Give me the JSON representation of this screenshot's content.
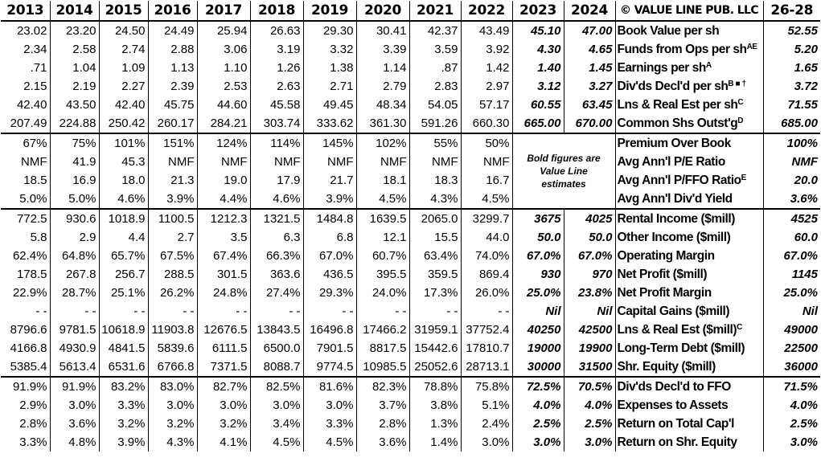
{
  "header": {
    "years": [
      "2013",
      "2014",
      "2015",
      "2016",
      "2017",
      "2018",
      "2019",
      "2020",
      "2021",
      "2022",
      "2023",
      "2024"
    ],
    "publisher": "© VALUE LINE PUB. LLC",
    "projection_label": "26-28"
  },
  "note": {
    "line1": "Bold figures are",
    "line2": "Value Line",
    "line3": "estimates"
  },
  "rows": [
    {
      "label": "Book Value per sh",
      "sup": "",
      "values": [
        "23.02",
        "23.20",
        "24.50",
        "24.49",
        "25.94",
        "26.63",
        "29.30",
        "30.41",
        "42.37",
        "43.49",
        "45.10",
        "47.00"
      ],
      "proj": "52.55"
    },
    {
      "label": "Funds from Ops per sh",
      "sup": "AE",
      "values": [
        "2.34",
        "2.58",
        "2.74",
        "2.88",
        "3.06",
        "3.19",
        "3.32",
        "3.39",
        "3.59",
        "3.92",
        "4.30",
        "4.65"
      ],
      "proj": "5.20"
    },
    {
      "label": "Earnings per sh",
      "sup": "A",
      "values": [
        ".71",
        "1.04",
        "1.09",
        "1.13",
        "1.10",
        "1.26",
        "1.38",
        "1.14",
        ".87",
        "1.42",
        "1.40",
        "1.45"
      ],
      "proj": "1.65"
    },
    {
      "label": "Div'ds Decl'd per sh",
      "sup": "B ■ †",
      "values": [
        "2.15",
        "2.19",
        "2.27",
        "2.39",
        "2.53",
        "2.63",
        "2.71",
        "2.79",
        "2.83",
        "2.97",
        "3.12",
        "3.27"
      ],
      "proj": "3.72"
    },
    {
      "label": "Lns & Real Est per sh",
      "sup": "C",
      "values": [
        "42.40",
        "43.50",
        "42.40",
        "45.75",
        "44.60",
        "45.58",
        "49.45",
        "48.34",
        "54.05",
        "57.17",
        "60.55",
        "63.45"
      ],
      "proj": "71.55"
    },
    {
      "label": "Common Shs Outst'g",
      "sup": "D",
      "values": [
        "207.49",
        "224.88",
        "250.42",
        "260.17",
        "284.21",
        "303.74",
        "333.62",
        "361.30",
        "591.26",
        "660.30",
        "665.00",
        "670.00"
      ],
      "proj": "685.00"
    },
    {
      "label": "Premium Over Book",
      "sup": "",
      "values": [
        "67%",
        "75%",
        "101%",
        "151%",
        "124%",
        "114%",
        "145%",
        "102%",
        "55%",
        "50%"
      ],
      "proj": "100%"
    },
    {
      "label": "Avg Ann'l P/E Ratio",
      "sup": "",
      "values": [
        "NMF",
        "41.9",
        "45.3",
        "NMF",
        "NMF",
        "NMF",
        "NMF",
        "NMF",
        "NMF",
        "NMF"
      ],
      "proj": "NMF"
    },
    {
      "label": "Avg Ann'l P/FFO Ratio",
      "sup": "E",
      "values": [
        "18.5",
        "16.9",
        "18.0",
        "21.3",
        "19.0",
        "17.9",
        "21.7",
        "18.1",
        "18.3",
        "16.7"
      ],
      "proj": "20.0"
    },
    {
      "label": "Avg Ann'l Div'd Yield",
      "sup": "",
      "values": [
        "5.0%",
        "5.0%",
        "4.6%",
        "3.9%",
        "4.4%",
        "4.6%",
        "3.9%",
        "4.5%",
        "4.3%",
        "4.5%"
      ],
      "proj": "3.6%"
    },
    {
      "label": "Rental Income ($mill)",
      "sup": "",
      "values": [
        "772.5",
        "930.6",
        "1018.9",
        "1100.5",
        "1212.3",
        "1321.5",
        "1484.8",
        "1639.5",
        "2065.0",
        "3299.7",
        "3675",
        "4025"
      ],
      "proj": "4525"
    },
    {
      "label": "Other Income ($mill)",
      "sup": "",
      "values": [
        "5.8",
        "2.9",
        "4.4",
        "2.7",
        "3.5",
        "6.3",
        "6.8",
        "12.1",
        "15.5",
        "44.0",
        "50.0",
        "50.0"
      ],
      "proj": "60.0"
    },
    {
      "label": "Operating Margin",
      "sup": "",
      "values": [
        "62.4%",
        "64.8%",
        "65.7%",
        "67.5%",
        "67.4%",
        "66.3%",
        "67.0%",
        "60.7%",
        "63.4%",
        "74.0%",
        "67.0%",
        "67.0%"
      ],
      "proj": "67.0%"
    },
    {
      "label": "Net Profit ($mill)",
      "sup": "",
      "values": [
        "178.5",
        "267.8",
        "256.7",
        "288.5",
        "301.5",
        "363.6",
        "436.5",
        "395.5",
        "359.5",
        "869.4",
        "930",
        "970"
      ],
      "proj": "1145"
    },
    {
      "label": "Net Profit Margin",
      "sup": "",
      "values": [
        "22.9%",
        "28.7%",
        "25.1%",
        "26.2%",
        "24.8%",
        "27.4%",
        "29.3%",
        "24.0%",
        "17.3%",
        "26.0%",
        "25.0%",
        "23.8%"
      ],
      "proj": "25.0%"
    },
    {
      "label": "Capital Gains ($mill)",
      "sup": "",
      "values": [
        "- -",
        "- -",
        "- -",
        "- -",
        "- -",
        "- -",
        "- -",
        "- -",
        "- -",
        "- -",
        "Nil",
        "Nil"
      ],
      "proj": "Nil"
    },
    {
      "label": "Lns & Real Est ($mill)",
      "sup": "C",
      "values": [
        "8796.6",
        "9781.5",
        "10618.9",
        "11903.8",
        "12676.5",
        "13843.5",
        "16496.8",
        "17466.2",
        "31959.1",
        "37752.4",
        "40250",
        "42500"
      ],
      "proj": "49000"
    },
    {
      "label": "Long-Term Debt ($mill)",
      "sup": "",
      "values": [
        "4166.8",
        "4930.9",
        "4841.5",
        "5839.6",
        "6111.5",
        "6500.0",
        "7901.5",
        "8817.5",
        "15442.6",
        "17810.7",
        "19000",
        "19900"
      ],
      "proj": "22500"
    },
    {
      "label": "Shr. Equity ($mill)",
      "sup": "",
      "values": [
        "5385.4",
        "5613.4",
        "6531.6",
        "6766.8",
        "7371.5",
        "8088.7",
        "9774.5",
        "10985.5",
        "25052.6",
        "28713.1",
        "30000",
        "31500"
      ],
      "proj": "36000"
    },
    {
      "label": "Div'ds Decl'd to FFO",
      "sup": "",
      "values": [
        "91.9%",
        "91.9%",
        "83.2%",
        "83.0%",
        "82.7%",
        "82.5%",
        "81.6%",
        "82.3%",
        "78.8%",
        "75.8%",
        "72.5%",
        "70.5%"
      ],
      "proj": "71.5%"
    },
    {
      "label": "Expenses to Assets",
      "sup": "",
      "values": [
        "2.9%",
        "3.0%",
        "3.3%",
        "3.0%",
        "3.0%",
        "3.0%",
        "3.0%",
        "3.7%",
        "3.8%",
        "5.1%",
        "4.0%",
        "4.0%"
      ],
      "proj": "4.0%"
    },
    {
      "label": "Return on Total Cap'l",
      "sup": "",
      "values": [
        "2.8%",
        "3.6%",
        "3.2%",
        "3.2%",
        "3.2%",
        "3.4%",
        "3.3%",
        "2.8%",
        "1.3%",
        "2.4%",
        "2.5%",
        "2.5%"
      ],
      "proj": "2.5%"
    },
    {
      "label": "Return on Shr. Equity",
      "sup": "",
      "values": [
        "3.3%",
        "4.8%",
        "3.9%",
        "4.3%",
        "4.1%",
        "4.5%",
        "4.5%",
        "3.6%",
        "1.4%",
        "3.0%",
        "3.0%",
        "3.0%"
      ],
      "proj": "3.0%"
    }
  ]
}
